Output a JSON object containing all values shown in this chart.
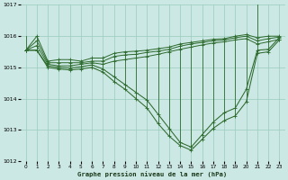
{
  "title": "Graphe pression niveau de la mer (hPa)",
  "bg_color": "#cce8e4",
  "grid_color": "#99ccbb",
  "line_color": "#2d6a2d",
  "xlim": [
    -0.5,
    23.5
  ],
  "ylim": [
    1012,
    1017
  ],
  "yticks": [
    1012,
    1013,
    1014,
    1015,
    1016,
    1017
  ],
  "xticks": [
    0,
    1,
    2,
    3,
    4,
    5,
    6,
    7,
    8,
    9,
    10,
    11,
    12,
    13,
    14,
    15,
    16,
    17,
    18,
    19,
    20,
    21,
    22,
    23
  ],
  "line1": [
    1015.55,
    1016.0,
    1015.2,
    1015.25,
    1015.25,
    1015.2,
    1015.3,
    1015.3,
    1015.45,
    1015.5,
    1015.52,
    1015.55,
    1015.6,
    1015.65,
    1015.75,
    1015.8,
    1015.85,
    1015.9,
    1015.92,
    1016.0,
    1016.05,
    1015.95,
    1016.0,
    1016.0
  ],
  "line2": [
    1015.55,
    1015.85,
    1015.15,
    1015.15,
    1015.15,
    1015.15,
    1015.2,
    1015.2,
    1015.35,
    1015.4,
    1015.42,
    1015.48,
    1015.52,
    1015.58,
    1015.68,
    1015.75,
    1015.8,
    1015.85,
    1015.88,
    1015.95,
    1016.0,
    1015.85,
    1015.92,
    1015.97
  ],
  "line3": [
    1015.55,
    1015.7,
    1015.1,
    1015.05,
    1015.05,
    1015.1,
    1015.15,
    1015.1,
    1015.2,
    1015.25,
    1015.3,
    1015.35,
    1015.42,
    1015.5,
    1015.58,
    1015.65,
    1015.72,
    1015.78,
    1015.82,
    1015.88,
    1015.92,
    1015.75,
    1015.82,
    1015.9
  ],
  "line4": [
    1015.55,
    1015.55,
    1015.05,
    1015.0,
    1014.98,
    1015.02,
    1015.08,
    1014.95,
    1014.7,
    1014.45,
    1014.2,
    1013.95,
    1013.5,
    1013.05,
    1012.6,
    1012.45,
    1012.85,
    1013.25,
    1013.55,
    1013.7,
    1014.3,
    1015.55,
    1015.58,
    1015.95
  ],
  "line5": [
    1015.55,
    1015.55,
    1015.0,
    1014.95,
    1014.92,
    1014.95,
    1015.0,
    1014.85,
    1014.55,
    1014.3,
    1014.0,
    1013.7,
    1013.2,
    1012.8,
    1012.5,
    1012.35,
    1012.7,
    1013.05,
    1013.3,
    1013.45,
    1013.9,
    1015.45,
    1015.5,
    1015.88
  ],
  "spike_top": [
    1016.0,
    1016.0,
    1015.2,
    1015.25,
    1015.25,
    1015.2,
    1015.3,
    1015.3,
    1015.45,
    1015.5,
    1015.52,
    1015.55,
    1015.6,
    1015.65,
    1015.75,
    1015.8,
    1015.85,
    1015.9,
    1015.92,
    1016.0,
    1016.05,
    1017.0,
    1016.0,
    1016.0
  ],
  "spike_bot": [
    1015.55,
    1015.55,
    1015.0,
    1014.95,
    1014.92,
    1014.95,
    1015.0,
    1014.85,
    1014.55,
    1014.3,
    1014.0,
    1013.7,
    1013.2,
    1012.8,
    1012.5,
    1012.35,
    1012.7,
    1013.05,
    1013.3,
    1013.45,
    1013.9,
    1015.45,
    1015.5,
    1015.88
  ],
  "figsize": [
    3.2,
    2.0
  ],
  "dpi": 100
}
